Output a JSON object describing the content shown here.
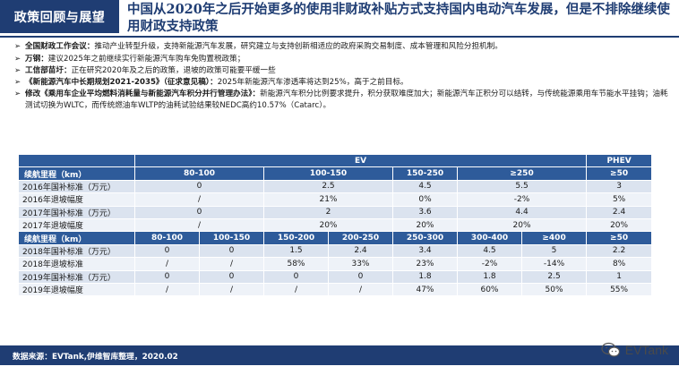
{
  "header": {
    "section_tag": "政策回顾与展望",
    "title": "中国从2020年之后开始更多的使用非财政补贴方式支持国内电动汽车发展，但是不排除继续使用财政支持政策"
  },
  "bullets": [
    {
      "title": "全国财政工作会议：",
      "text": "推动产业转型升级，支持新能源汽车发展，研究建立与支持创新相适应的政府采购交易制度、成本管理和风险分担机制。"
    },
    {
      "title": "万钢：",
      "text": "建议2025年之前继续实行新能源汽车购车免购置税政策；"
    },
    {
      "title": "工信部苗圩：",
      "text": "正在研究2020年及之后的政策，退坡的政策可能要平缓一些"
    },
    {
      "title": "《新能源汽车中长期规划2021-2035》（征求意见稿）：",
      "text": "2025年新能源汽车渗透率将达到25%，高于之前目标。"
    },
    {
      "title": "修改《乘用车企业平均燃料消耗量与新能源汽车积分并行管理办法》：",
      "text": "新能源汽车积分比例要求提升，积分获取难度加大；新能源汽车正积分可以结转，与传统能源乘用车节能水平挂钩；油耗测试切换为WLTC，而传统燃油车WLTP的油耗试验结果较NEDC高约10.57%（Catarc）。"
    }
  ],
  "table": {
    "top_header": {
      "ev": "EV",
      "phev": "PHEV"
    },
    "section1": {
      "header": [
        "续航里程（km）",
        "80-100",
        "100-150",
        "150-250",
        "≥250",
        "≥50"
      ],
      "rows": [
        [
          "2016年国补标准（万元）",
          "0",
          "2.5",
          "4.5",
          "5.5",
          "3"
        ],
        [
          "2016年退坡幅度",
          "/",
          "21%",
          "0%",
          "-2%",
          "5%"
        ],
        [
          "2017年国补标准（万元）",
          "0",
          "2",
          "3.6",
          "4.4",
          "2.4"
        ],
        [
          "2017年退坡幅度",
          "/",
          "20%",
          "20%",
          "20%",
          "20%"
        ]
      ]
    },
    "section2": {
      "header": [
        "续航里程（km）",
        "80-100",
        "100-150",
        "150-200",
        "200-250",
        "250-300",
        "300-400",
        "≥400",
        "≥50"
      ],
      "rows": [
        [
          "2018年国补标准（万元）",
          "0",
          "0",
          "1.5",
          "2.4",
          "3.4",
          "4.5",
          "5",
          "2.2"
        ],
        [
          "2018年退坡标准",
          "/",
          "/",
          "58%",
          "33%",
          "23%",
          "-2%",
          "-14%",
          "8%"
        ],
        [
          "2019年国补标准（万元）",
          "0",
          "0",
          "0",
          "0",
          "1.8",
          "1.8",
          "2.5",
          "1"
        ],
        [
          "2019年退坡幅度",
          "/",
          "/",
          "/",
          "/",
          "47%",
          "60%",
          "50%",
          "55%"
        ]
      ]
    }
  },
  "footer": {
    "source": "数据来源：EVTank,伊维智库整理，2020.02",
    "brand": "EVTank",
    "brand_icon": "wechat-icon"
  },
  "colors": {
    "navy": "#1f3d73",
    "table_header": "#2e5b9a",
    "row_odd": "#dbe3ef",
    "row_even": "#eef2f8"
  }
}
